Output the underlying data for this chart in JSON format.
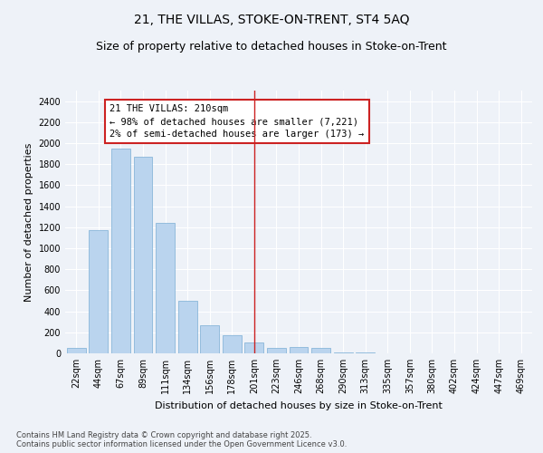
{
  "title": "21, THE VILLAS, STOKE-ON-TRENT, ST4 5AQ",
  "subtitle": "Size of property relative to detached houses in Stoke-on-Trent",
  "xlabel": "Distribution of detached houses by size in Stoke-on-Trent",
  "ylabel": "Number of detached properties",
  "categories": [
    "22sqm",
    "44sqm",
    "67sqm",
    "89sqm",
    "111sqm",
    "134sqm",
    "156sqm",
    "178sqm",
    "201sqm",
    "223sqm",
    "246sqm",
    "268sqm",
    "290sqm",
    "313sqm",
    "335sqm",
    "357sqm",
    "380sqm",
    "402sqm",
    "424sqm",
    "447sqm",
    "469sqm"
  ],
  "values": [
    50,
    1170,
    1950,
    1870,
    1240,
    500,
    270,
    170,
    100,
    55,
    60,
    50,
    10,
    5,
    3,
    2,
    2,
    2,
    1,
    1,
    1
  ],
  "bar_color": "#bad4ee",
  "bar_edge_color": "#7aaed4",
  "annotation_bar_index": 8,
  "vline_color": "#cc2222",
  "annotation_box_color": "#cc2222",
  "bg_color": "#eef2f8",
  "plot_bg_color": "#eef2f8",
  "grid_color": "#ffffff",
  "ylim": [
    0,
    2500
  ],
  "yticks": [
    0,
    200,
    400,
    600,
    800,
    1000,
    1200,
    1400,
    1600,
    1800,
    2000,
    2200,
    2400
  ],
  "footer_text": "Contains HM Land Registry data © Crown copyright and database right 2025.\nContains public sector information licensed under the Open Government Licence v3.0.",
  "title_fontsize": 10,
  "subtitle_fontsize": 9,
  "xlabel_fontsize": 8,
  "ylabel_fontsize": 8,
  "tick_fontsize": 7,
  "annotation_fontsize": 7.5,
  "footer_fontsize": 6
}
